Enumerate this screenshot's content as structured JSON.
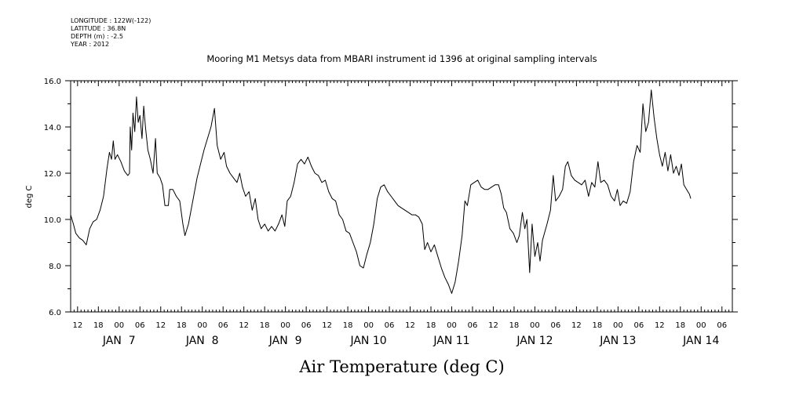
{
  "header": {
    "lines": [
      "LONGITUDE : 122W(-122)",
      "LATITUDE : 36.8N",
      "DEPTH (m) : -2.5",
      "YEAR : 2012"
    ]
  },
  "chart_data": {
    "type": "line",
    "title": "Mooring M1 Metsys data from MBARI instrument id 1396 at original sampling intervals",
    "ylabel": "deg C",
    "xlabel": "Air Temperature (deg C)",
    "ylim": [
      6.0,
      16.0
    ],
    "yticks": [
      "6.0",
      "8.0",
      "10.0",
      "12.0",
      "14.0",
      "16.0"
    ],
    "xlim_hours": [
      10,
      201
    ],
    "hour_ticks": [
      "12",
      "18",
      "00",
      "06",
      "12",
      "18",
      "00",
      "06",
      "12",
      "18",
      "00",
      "06",
      "12",
      "18",
      "00",
      "06",
      "12",
      "18",
      "00",
      "06",
      "12",
      "18",
      "00",
      "06",
      "12",
      "18",
      "00",
      "06",
      "12",
      "18",
      "00",
      "06"
    ],
    "day_labels": [
      "JAN  7",
      "JAN  8",
      "JAN  9",
      "JAN 10",
      "JAN 11",
      "JAN 12",
      "JAN 13",
      "JAN 14"
    ],
    "grid": false,
    "color": "#000000",
    "series": [
      {
        "values": [
          [
            10,
            10.2
          ],
          [
            10.8,
            9.8
          ],
          [
            11.5,
            9.4
          ],
          [
            12.5,
            9.2
          ],
          [
            13.5,
            9.1
          ],
          [
            14.5,
            8.9
          ],
          [
            15.5,
            9.6
          ],
          [
            16.5,
            9.9
          ],
          [
            17.5,
            10.0
          ],
          [
            18.5,
            10.4
          ],
          [
            19.5,
            11.0
          ],
          [
            20.5,
            12.2
          ],
          [
            21.2,
            12.9
          ],
          [
            21.8,
            12.6
          ],
          [
            22.3,
            13.4
          ],
          [
            22.8,
            12.6
          ],
          [
            23.5,
            12.8
          ],
          [
            24.5,
            12.5
          ],
          [
            25.5,
            12.1
          ],
          [
            26.5,
            11.9
          ],
          [
            27,
            12.0
          ],
          [
            27.2,
            14.0
          ],
          [
            27.6,
            13.0
          ],
          [
            28,
            14.6
          ],
          [
            28.5,
            13.8
          ],
          [
            29,
            15.3
          ],
          [
            29.5,
            14.2
          ],
          [
            30,
            14.5
          ],
          [
            30.6,
            13.5
          ],
          [
            31.1,
            14.9
          ],
          [
            31.6,
            14.0
          ],
          [
            32.3,
            13.0
          ],
          [
            33,
            12.6
          ],
          [
            33.8,
            12.0
          ],
          [
            34.5,
            13.5
          ],
          [
            35,
            12.0
          ],
          [
            35.8,
            11.8
          ],
          [
            36.5,
            11.5
          ],
          [
            37.2,
            10.6
          ],
          [
            38.2,
            10.6
          ],
          [
            38.6,
            11.3
          ],
          [
            39.5,
            11.3
          ],
          [
            40.5,
            11.0
          ],
          [
            41.5,
            10.8
          ],
          [
            42.4,
            9.8
          ],
          [
            43,
            9.3
          ],
          [
            44,
            9.8
          ],
          [
            45,
            10.6
          ],
          [
            46.5,
            11.8
          ],
          [
            48.5,
            13.0
          ],
          [
            50.5,
            14.0
          ],
          [
            51.5,
            14.8
          ],
          [
            52.3,
            13.2
          ],
          [
            53.3,
            12.6
          ],
          [
            54.3,
            12.9
          ],
          [
            55,
            12.3
          ],
          [
            56,
            12.0
          ],
          [
            57,
            11.8
          ],
          [
            58,
            11.6
          ],
          [
            58.8,
            12.0
          ],
          [
            59.6,
            11.4
          ],
          [
            60.5,
            11.0
          ],
          [
            61.5,
            11.2
          ],
          [
            62.4,
            10.4
          ],
          [
            63.3,
            10.9
          ],
          [
            64.1,
            10.0
          ],
          [
            65,
            9.6
          ],
          [
            66,
            9.8
          ],
          [
            67,
            9.5
          ],
          [
            68,
            9.7
          ],
          [
            69,
            9.5
          ],
          [
            70,
            9.8
          ],
          [
            71,
            10.2
          ],
          [
            71.8,
            9.7
          ],
          [
            72.5,
            10.8
          ],
          [
            73.5,
            11.0
          ],
          [
            74.5,
            11.6
          ],
          [
            75.5,
            12.4
          ],
          [
            76.5,
            12.6
          ],
          [
            77.5,
            12.4
          ],
          [
            78.5,
            12.7
          ],
          [
            79.5,
            12.3
          ],
          [
            80.5,
            12.0
          ],
          [
            81.5,
            11.9
          ],
          [
            82.5,
            11.6
          ],
          [
            83.5,
            11.7
          ],
          [
            84.5,
            11.2
          ],
          [
            85.5,
            10.9
          ],
          [
            86.5,
            10.8
          ],
          [
            87.5,
            10.2
          ],
          [
            88.5,
            10.0
          ],
          [
            89.5,
            9.5
          ],
          [
            90.5,
            9.4
          ],
          [
            91.5,
            9.0
          ],
          [
            92.5,
            8.6
          ],
          [
            93.5,
            8.0
          ],
          [
            94.5,
            7.9
          ],
          [
            95.5,
            8.5
          ],
          [
            96.5,
            9.0
          ],
          [
            97.5,
            9.8
          ],
          [
            98.5,
            10.9
          ],
          [
            99.5,
            11.4
          ],
          [
            100.5,
            11.5
          ],
          [
            101.5,
            11.2
          ],
          [
            102.5,
            11.0
          ],
          [
            103.5,
            10.8
          ],
          [
            104.5,
            10.6
          ],
          [
            105.5,
            10.5
          ],
          [
            106.5,
            10.4
          ],
          [
            107.5,
            10.3
          ],
          [
            108.5,
            10.2
          ],
          [
            109.5,
            10.2
          ],
          [
            110.5,
            10.1
          ],
          [
            111.5,
            9.8
          ],
          [
            112.2,
            8.7
          ],
          [
            113,
            9.0
          ],
          [
            114,
            8.6
          ],
          [
            115,
            8.9
          ],
          [
            116,
            8.4
          ],
          [
            117,
            7.9
          ],
          [
            118,
            7.5
          ],
          [
            119,
            7.2
          ],
          [
            120,
            6.8
          ],
          [
            121,
            7.3
          ],
          [
            122,
            8.2
          ],
          [
            123,
            9.3
          ],
          [
            123.8,
            10.8
          ],
          [
            124.5,
            10.6
          ],
          [
            125.5,
            11.5
          ],
          [
            126.5,
            11.6
          ],
          [
            127.5,
            11.7
          ],
          [
            128.5,
            11.4
          ],
          [
            129.5,
            11.3
          ],
          [
            130.5,
            11.3
          ],
          [
            131.5,
            11.4
          ],
          [
            132.5,
            11.5
          ],
          [
            133.5,
            11.5
          ],
          [
            134.3,
            11.1
          ],
          [
            135,
            10.5
          ],
          [
            135.8,
            10.3
          ],
          [
            136.8,
            9.6
          ],
          [
            137.8,
            9.4
          ],
          [
            138.8,
            9.0
          ],
          [
            139.5,
            9.3
          ],
          [
            140.4,
            10.3
          ],
          [
            141.1,
            9.6
          ],
          [
            141.7,
            10.0
          ],
          [
            142.5,
            7.7
          ],
          [
            143.2,
            9.8
          ],
          [
            144,
            8.4
          ],
          [
            144.8,
            9.0
          ],
          [
            145.5,
            8.2
          ],
          [
            146.2,
            9.1
          ],
          [
            147.5,
            9.8
          ],
          [
            148.5,
            10.4
          ],
          [
            149.3,
            11.9
          ],
          [
            150,
            10.8
          ],
          [
            151,
            11.0
          ],
          [
            152,
            11.3
          ],
          [
            152.8,
            12.3
          ],
          [
            153.5,
            12.5
          ],
          [
            154.5,
            11.9
          ],
          [
            155.5,
            11.7
          ],
          [
            156.5,
            11.6
          ],
          [
            157.5,
            11.5
          ],
          [
            158.5,
            11.7
          ],
          [
            159.5,
            11.0
          ],
          [
            160.4,
            11.6
          ],
          [
            161.3,
            11.4
          ],
          [
            162.2,
            12.5
          ],
          [
            163,
            11.6
          ],
          [
            164,
            11.7
          ],
          [
            165,
            11.5
          ],
          [
            166,
            11.0
          ],
          [
            167,
            10.8
          ],
          [
            167.8,
            11.3
          ],
          [
            168.6,
            10.6
          ],
          [
            169.5,
            10.8
          ],
          [
            170.5,
            10.7
          ],
          [
            171.5,
            11.2
          ],
          [
            172.5,
            12.5
          ],
          [
            173.5,
            13.2
          ],
          [
            174.4,
            12.9
          ],
          [
            175.2,
            15.0
          ],
          [
            176,
            13.8
          ],
          [
            176.8,
            14.2
          ],
          [
            177.6,
            15.6
          ],
          [
            178.4,
            14.4
          ],
          [
            179.2,
            13.5
          ],
          [
            180,
            12.8
          ],
          [
            180.8,
            12.3
          ],
          [
            181.6,
            12.9
          ],
          [
            182.4,
            12.1
          ],
          [
            183.2,
            12.8
          ],
          [
            184,
            12.0
          ],
          [
            184.8,
            12.3
          ],
          [
            185.6,
            11.9
          ],
          [
            186.3,
            12.4
          ],
          [
            187,
            11.5
          ],
          [
            187.8,
            11.3
          ],
          [
            188.6,
            11.1
          ],
          [
            189,
            10.9
          ]
        ]
      }
    ]
  }
}
